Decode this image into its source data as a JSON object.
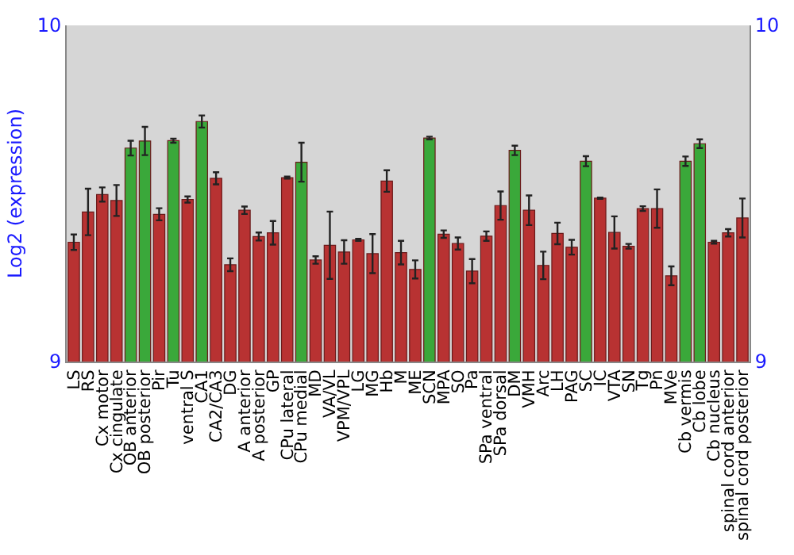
{
  "chart_data": {
    "type": "bar",
    "ylabel": "Log2 (expression)",
    "categories": [
      "LS",
      "RS",
      "Cx motor",
      "Cx cingulate",
      "OB anterior",
      "OB posterior",
      "Pir",
      "Tu",
      "ventral S",
      "CA1",
      "CA2/CA3",
      "DG",
      "A anterior",
      "A posterior",
      "GP",
      "CPu lateral",
      "CPu medial",
      "MD",
      "VA/VL",
      "VPM/VPL",
      "LG",
      "MG",
      "Hb",
      "M",
      "ME",
      "SCN",
      "MPA",
      "SO",
      "Pa",
      "SPa ventral",
      "SPa dorsal",
      "DM",
      "VMH",
      "Arc",
      "LH",
      "PAG",
      "SC",
      "IC",
      "VTA",
      "SN",
      "Tg",
      "Pn",
      "MVe",
      "Cb vermis",
      "Cb lobe",
      "Cb nucleus",
      "spinal cord anterior",
      "spinal cord posterior"
    ],
    "values": [
      9.355,
      9.445,
      9.497,
      9.479,
      9.635,
      9.656,
      9.438,
      9.657,
      9.482,
      9.714,
      9.545,
      9.288,
      9.45,
      9.372,
      9.383,
      9.547,
      9.593,
      9.302,
      9.346,
      9.326,
      9.362,
      9.321,
      9.537,
      9.324,
      9.274,
      9.665,
      9.379,
      9.351,
      9.269,
      9.373,
      9.464,
      9.628,
      9.45,
      9.286,
      9.381,
      9.34,
      9.596,
      9.486,
      9.384,
      9.343,
      9.455,
      9.455,
      9.255,
      9.596,
      9.648,
      9.355,
      9.383,
      9.427
    ],
    "errors": [
      0.023,
      0.069,
      0.021,
      0.046,
      0.022,
      0.042,
      0.018,
      0.006,
      0.009,
      0.018,
      0.018,
      0.019,
      0.011,
      0.012,
      0.035,
      0.003,
      0.058,
      0.011,
      0.1,
      0.035,
      0.003,
      0.058,
      0.032,
      0.035,
      0.027,
      0.004,
      0.011,
      0.018,
      0.036,
      0.014,
      0.042,
      0.014,
      0.044,
      0.041,
      0.032,
      0.022,
      0.015,
      0.002,
      0.048,
      0.007,
      0.007,
      0.057,
      0.028,
      0.014,
      0.013,
      0.004,
      0.011,
      0.058
    ],
    "colors": [
      "#b83232",
      "#b83232",
      "#b83232",
      "#b83232",
      "#3aa83a",
      "#3aa83a",
      "#b83232",
      "#3aa83a",
      "#b83232",
      "#3aa83a",
      "#b83232",
      "#b83232",
      "#b83232",
      "#b83232",
      "#b83232",
      "#b83232",
      "#3aa83a",
      "#b83232",
      "#b83232",
      "#b83232",
      "#b83232",
      "#b83232",
      "#b83232",
      "#b83232",
      "#b83232",
      "#3aa83a",
      "#b83232",
      "#b83232",
      "#b83232",
      "#b83232",
      "#b83232",
      "#3aa83a",
      "#b83232",
      "#b83232",
      "#b83232",
      "#b83232",
      "#3aa83a",
      "#b83232",
      "#b83232",
      "#b83232",
      "#b83232",
      "#b83232",
      "#b83232",
      "#3aa83a",
      "#3aa83a",
      "#b83232",
      "#b83232",
      "#b83232"
    ],
    "ylim": [
      9,
      10
    ],
    "yticks": [
      9,
      10
    ],
    "y2lim": [
      9,
      10
    ],
    "y2ticks": [
      9,
      10
    ]
  }
}
